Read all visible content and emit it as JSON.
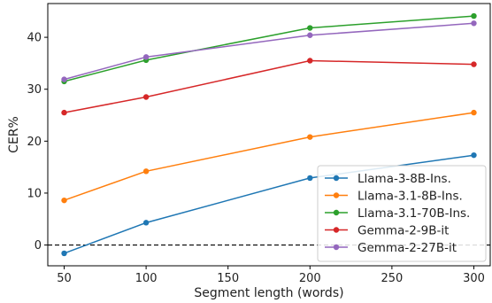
{
  "chart_data": {
    "type": "line",
    "title": "",
    "xlabel": "Segment length (words)",
    "ylabel": "CER%",
    "xlim": [
      40,
      310
    ],
    "ylim": [
      -4,
      46.5
    ],
    "xticks": [
      50,
      100,
      150,
      200,
      250,
      300
    ],
    "yticks": [
      0,
      10,
      20,
      30,
      40
    ],
    "grid": false,
    "legend_position": "lower-right",
    "reference_line": {
      "y": 0,
      "style": "dashed",
      "color": "#000000"
    },
    "x": [
      50,
      100,
      200,
      300
    ],
    "series": [
      {
        "name": "Llama-3-8B-Ins.",
        "color": "#1f77b4",
        "values": [
          -1.6,
          4.3,
          12.9,
          17.3
        ]
      },
      {
        "name": "Llama-3.1-8B-Ins.",
        "color": "#ff7f0e",
        "values": [
          8.6,
          14.2,
          20.8,
          25.5
        ]
      },
      {
        "name": "Llama-3.1-70B-Ins.",
        "color": "#2ca02c",
        "values": [
          31.5,
          35.6,
          41.8,
          44.1
        ]
      },
      {
        "name": "Gemma-2-9B-it",
        "color": "#d62728",
        "values": [
          25.5,
          28.5,
          35.5,
          34.8
        ]
      },
      {
        "name": "Gemma-2-27B-it",
        "color": "#9467bd",
        "values": [
          31.9,
          36.2,
          40.4,
          42.7
        ]
      }
    ]
  }
}
